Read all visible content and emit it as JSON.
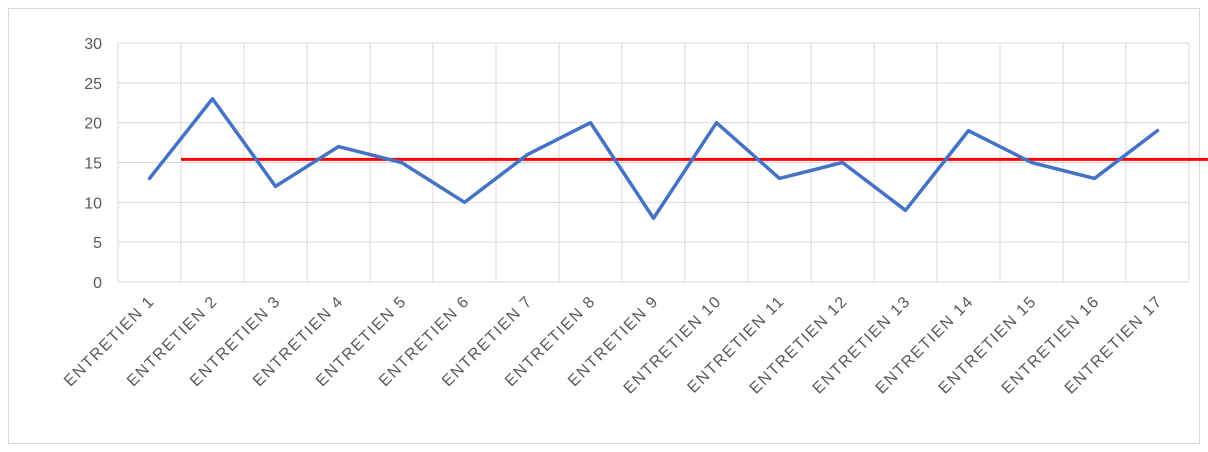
{
  "chart_data": {
    "type": "line",
    "title": "",
    "xlabel": "",
    "ylabel": "",
    "ylim": [
      0,
      30
    ],
    "yticks": [
      0,
      5,
      10,
      15,
      20,
      25,
      30
    ],
    "grid": true,
    "legend": "none",
    "categories": [
      "ENTRETIEN 1",
      "ENTRETIEN 2",
      "ENTRETIEN 3",
      "ENTRETIEN 4",
      "ENTRETIEN 5",
      "ENTRETIEN 6",
      "ENTRETIEN 7",
      "ENTRETIEN 8",
      "ENTRETIEN 9",
      "ENTRETIEN 10",
      "ENTRETIEN 11",
      "ENTRETIEN 12",
      "ENTRETIEN 13",
      "ENTRETIEN 14",
      "ENTRETIEN 15",
      "ENTRETIEN 16",
      "ENTRETIEN 17"
    ],
    "series": [
      {
        "color": "#4472c4",
        "values": [
          13,
          23,
          12,
          17,
          15,
          10,
          16,
          20,
          8,
          20,
          13,
          15,
          9,
          19,
          15,
          13,
          19
        ]
      }
    ],
    "reference_line": {
      "value": 15.4,
      "color": "#ff0000",
      "from_category_index": 0.5,
      "to_category_index": 16.8
    }
  }
}
